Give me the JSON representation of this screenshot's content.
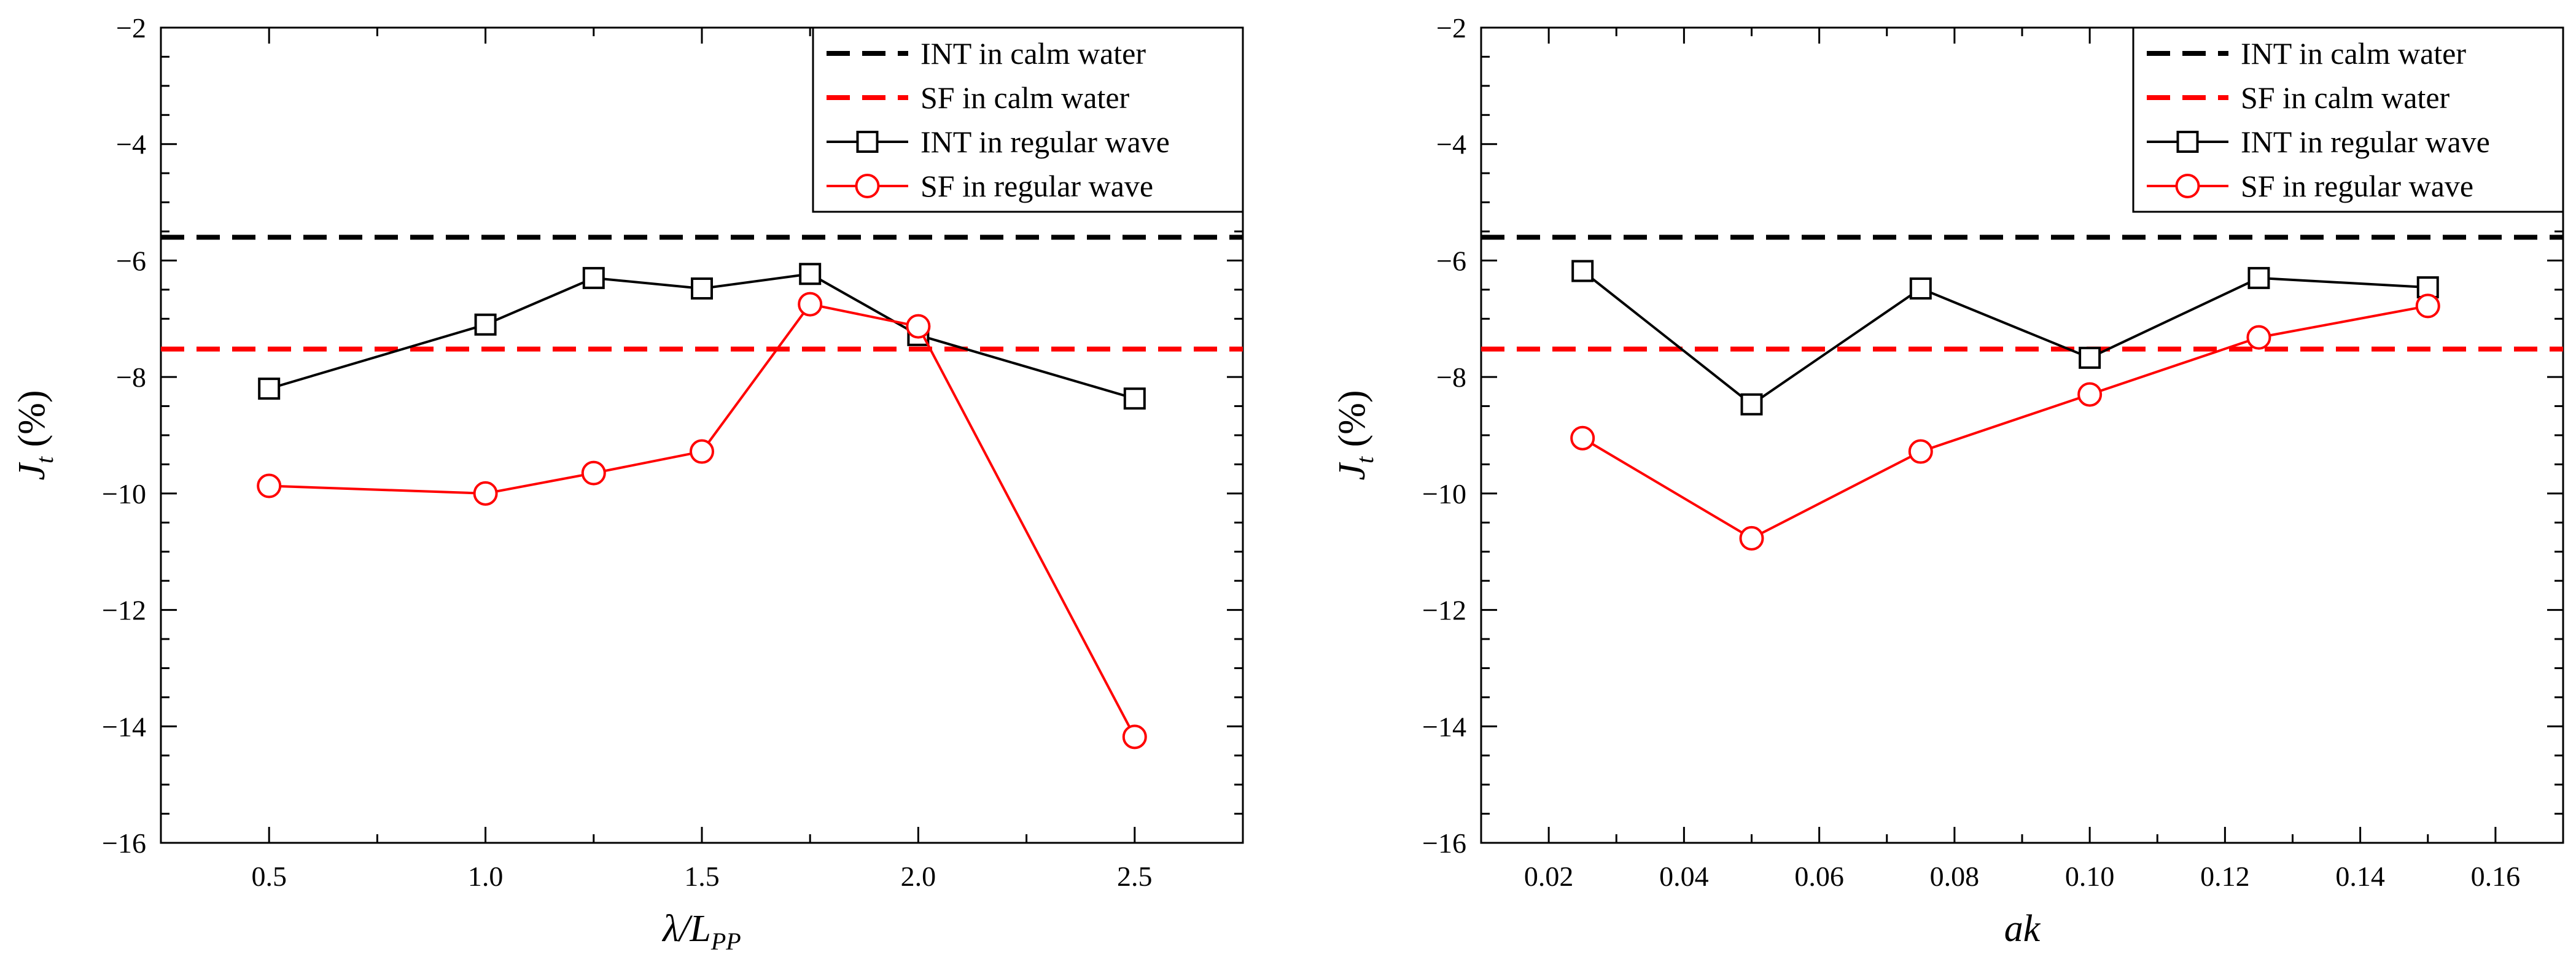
{
  "chart_data": [
    {
      "type": "line",
      "xlabel_main": "λ/L",
      "xlabel_sub": "PP",
      "ylabel_main": "J",
      "ylabel_sub": "t",
      "ylabel_unit": " (%)",
      "xlim": [
        0.25,
        2.75
      ],
      "ylim": [
        -16,
        -2
      ],
      "xticks": [
        0.5,
        1.0,
        1.5,
        2.0,
        2.5
      ],
      "xtick_labels": [
        "0.5",
        "1.0",
        "1.5",
        "2.0",
        "2.5"
      ],
      "yticks": [
        -16,
        -14,
        -12,
        -10,
        -8,
        -6,
        -4,
        -2
      ],
      "ytick_labels": [
        "−16",
        "−14",
        "−12",
        "−10",
        "−8",
        "−6",
        "−4",
        "−2"
      ],
      "legend_position": "top-right",
      "series": [
        {
          "name": "INT in calm water",
          "kind": "hline",
          "value": -5.6,
          "color": "#000000",
          "dashed": true
        },
        {
          "name": "SF in calm water",
          "kind": "hline",
          "value": -7.52,
          "color": "#ff0000",
          "dashed": true
        },
        {
          "name": "INT in regular wave",
          "kind": "line",
          "marker": "square",
          "color": "#000000",
          "x": [
            0.5,
            1.0,
            1.25,
            1.5,
            1.75,
            2.0,
            2.5
          ],
          "y": [
            -8.2,
            -7.1,
            -6.3,
            -6.48,
            -6.23,
            -7.28,
            -8.37
          ]
        },
        {
          "name": "SF in regular wave",
          "kind": "line",
          "marker": "circle",
          "color": "#ff0000",
          "x": [
            0.5,
            1.0,
            1.25,
            1.5,
            1.75,
            2.0,
            2.5
          ],
          "y": [
            -9.87,
            -10.0,
            -9.65,
            -9.28,
            -6.75,
            -7.13,
            -14.18
          ]
        }
      ]
    },
    {
      "type": "line",
      "xlabel_main": "ak",
      "xlabel_sub": "",
      "ylabel_main": "J",
      "ylabel_sub": "t",
      "ylabel_unit": " (%)",
      "xlim": [
        0.01,
        0.17
      ],
      "ylim": [
        -16,
        -2
      ],
      "xticks": [
        0.02,
        0.04,
        0.06,
        0.08,
        0.1,
        0.12,
        0.14,
        0.16
      ],
      "xtick_labels": [
        "0.02",
        "0.04",
        "0.06",
        "0.08",
        "0.10",
        "0.12",
        "0.14",
        "0.16"
      ],
      "yticks": [
        -16,
        -14,
        -12,
        -10,
        -8,
        -6,
        -4,
        -2
      ],
      "ytick_labels": [
        "−16",
        "−14",
        "−12",
        "−10",
        "−8",
        "−6",
        "−4",
        "−2"
      ],
      "legend_position": "top-right",
      "series": [
        {
          "name": "INT in calm water",
          "kind": "hline",
          "value": -5.6,
          "color": "#000000",
          "dashed": true
        },
        {
          "name": "SF in calm water",
          "kind": "hline",
          "value": -7.52,
          "color": "#ff0000",
          "dashed": true
        },
        {
          "name": "INT in regular wave",
          "kind": "line",
          "marker": "square",
          "color": "#000000",
          "x": [
            0.025,
            0.05,
            0.075,
            0.1,
            0.125,
            0.15
          ],
          "y": [
            -6.18,
            -8.47,
            -6.48,
            -7.67,
            -6.3,
            -6.46
          ]
        },
        {
          "name": "SF in regular wave",
          "kind": "line",
          "marker": "circle",
          "color": "#ff0000",
          "x": [
            0.025,
            0.05,
            0.075,
            0.1,
            0.125,
            0.15
          ],
          "y": [
            -9.05,
            -10.77,
            -9.28,
            -8.3,
            -7.32,
            -6.78
          ]
        }
      ]
    }
  ]
}
